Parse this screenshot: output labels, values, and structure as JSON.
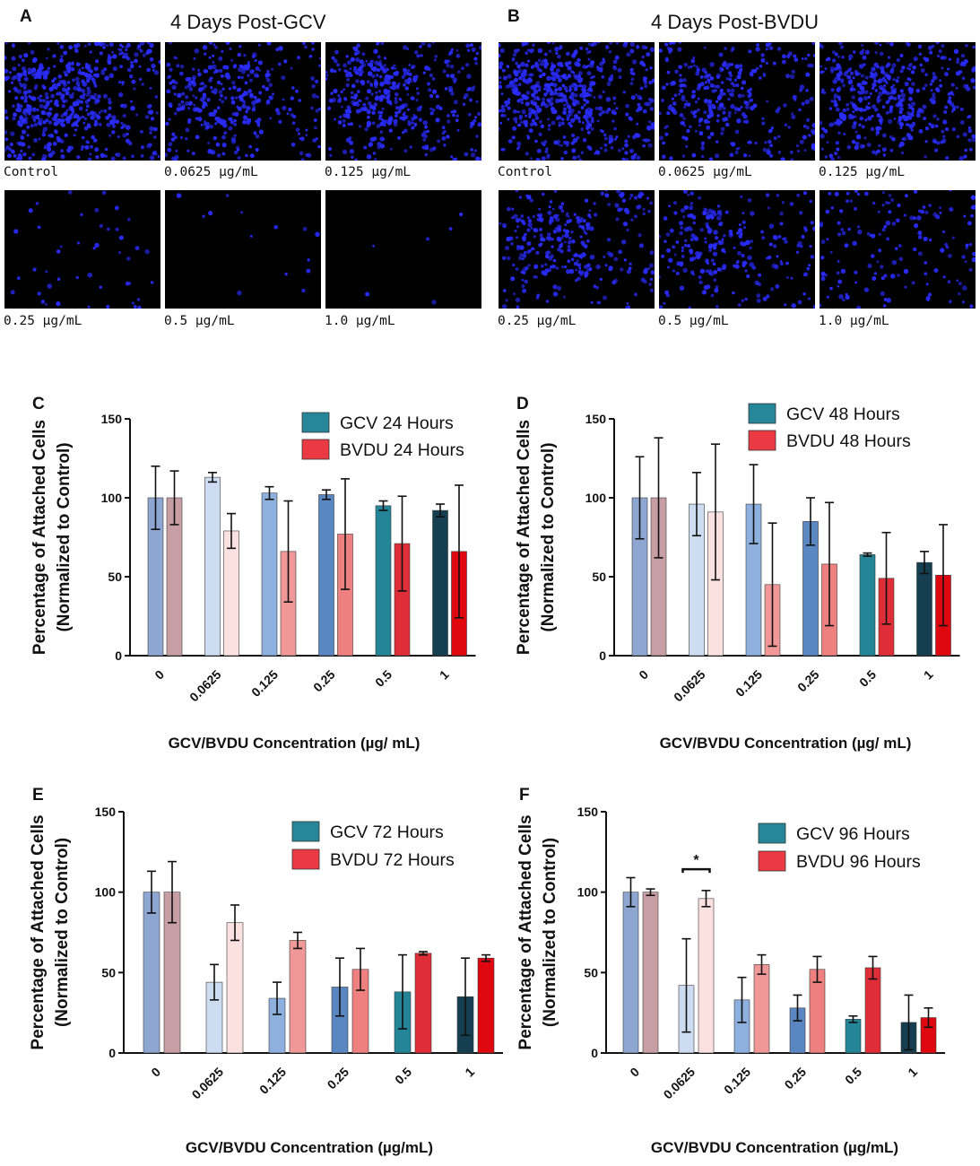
{
  "panels_top": [
    {
      "letter": "A",
      "title": "4 Days Post-GCV",
      "images": [
        {
          "label": "Control",
          "density": 560
        },
        {
          "label": "0.0625 µg/mL",
          "density": 340
        },
        {
          "label": "0.125 µg/mL",
          "density": 420
        },
        {
          "label": "0.25 µg/mL",
          "density": 45
        },
        {
          "label": "0.5 µg/mL",
          "density": 14
        },
        {
          "label": "1.0 µg/mL",
          "density": 6
        }
      ]
    },
    {
      "letter": "B",
      "title": "4 Days Post-BVDU",
      "images": [
        {
          "label": "Control",
          "density": 560
        },
        {
          "label": "0.0625 µg/mL",
          "density": 330
        },
        {
          "label": "0.125 µg/mL",
          "density": 460
        },
        {
          "label": "0.25 µg/mL",
          "density": 300
        },
        {
          "label": "0.5 µg/mL",
          "density": 240
        },
        {
          "label": "1.0 µg/mL",
          "density": 150
        }
      ]
    }
  ],
  "chart_data": [
    {
      "letter": "C",
      "type": "bar",
      "title": "",
      "categories": [
        "0",
        "0.0625",
        "0.125",
        "0.25",
        "0.5",
        "1"
      ],
      "xlabel": "GCV/BVDU Concentration (µg/ mL)",
      "ylabel": [
        "Percentage of Attached Cells",
        "(Normalized to Control)"
      ],
      "ylim": [
        0,
        150
      ],
      "yticks": [
        0,
        50,
        100,
        150
      ],
      "series": [
        {
          "name": "GCV 24 Hours",
          "values": [
            100,
            113,
            103,
            102,
            95,
            92
          ],
          "errors": [
            20,
            3,
            4,
            3,
            3,
            4
          ]
        },
        {
          "name": "BVDU 24 Hours",
          "values": [
            100,
            79,
            66,
            77,
            71,
            66
          ],
          "errors": [
            17,
            11,
            32,
            35,
            30,
            42
          ]
        }
      ],
      "annotations": []
    },
    {
      "letter": "D",
      "type": "bar",
      "title": "",
      "categories": [
        "0",
        "0.0625",
        "0.125",
        "0.25",
        "0.5",
        "1"
      ],
      "xlabel": "GCV/BVDU  Concentration (µg/ mL)",
      "ylabel": [
        "Percentage of Attached Cells",
        "(Normalized to Control)"
      ],
      "ylim": [
        0,
        150
      ],
      "yticks": [
        0,
        50,
        100,
        150
      ],
      "series": [
        {
          "name": "GCV 48 Hours",
          "values": [
            100,
            96,
            96,
            85,
            64,
            59
          ],
          "errors": [
            26,
            20,
            25,
            15,
            1,
            7
          ]
        },
        {
          "name": "BVDU 48 Hours",
          "values": [
            100,
            91,
            45,
            58,
            49,
            51
          ],
          "errors": [
            38,
            43,
            39,
            39,
            29,
            32
          ]
        }
      ],
      "annotations": []
    },
    {
      "letter": "E",
      "type": "bar",
      "title": "",
      "categories": [
        "0",
        "0.0625",
        "0.125",
        "0.25",
        "0.5",
        "1"
      ],
      "xlabel": "GCV/BVDU  Concentration (µg/mL)",
      "ylabel": [
        "Percentage of Attached Cells",
        "(Normalized to Control)"
      ],
      "ylim": [
        0,
        150
      ],
      "yticks": [
        0,
        50,
        100,
        150
      ],
      "series": [
        {
          "name": "GCV 72 Hours",
          "values": [
            100,
            44,
            34,
            41,
            38,
            35
          ],
          "errors": [
            13,
            11,
            10,
            18,
            23,
            24
          ]
        },
        {
          "name": "BVDU 72 Hours",
          "values": [
            100,
            81,
            70,
            52,
            62,
            59
          ],
          "errors": [
            19,
            11,
            5,
            13,
            1,
            2
          ]
        }
      ],
      "annotations": []
    },
    {
      "letter": "F",
      "type": "bar",
      "title": "",
      "categories": [
        "0",
        "0.0625",
        "0.125",
        "0.25",
        "0.5",
        "1"
      ],
      "xlabel": "GCV/BVDU Concentration (µg/mL)",
      "ylabel": [
        "Percentage of Attached Cells",
        "(Normalized to Control)"
      ],
      "ylim": [
        0,
        150
      ],
      "yticks": [
        0,
        50,
        100,
        150
      ],
      "series": [
        {
          "name": "GCV 96 Hours",
          "values": [
            100,
            42,
            33,
            28,
            21,
            19
          ],
          "errors": [
            9,
            29,
            14,
            8,
            2,
            17
          ]
        },
        {
          "name": "BVDU 96 Hours",
          "values": [
            100,
            96,
            55,
            52,
            53,
            22
          ],
          "errors": [
            2,
            5,
            6,
            8,
            7,
            6
          ]
        }
      ],
      "annotations": [
        {
          "text": "*",
          "between": [
            "0.0625 GCV",
            "0.0625 BVDU"
          ]
        }
      ]
    }
  ],
  "colors": {
    "gcv_bars": [
      "#8ea6d2",
      "#cddcf0",
      "#8eb0de",
      "#5a86c2",
      "#248598",
      "#153f50"
    ],
    "bvdu_bars": [
      "#c69ea3",
      "#fbe1e0",
      "#f09898",
      "#ef8080",
      "#e02e38",
      "#e00810"
    ],
    "legend_gcv": "#26869a",
    "legend_bvdu": "#ec3a44",
    "nuclei": "#2a2cff",
    "micro_bg": "#000000"
  }
}
